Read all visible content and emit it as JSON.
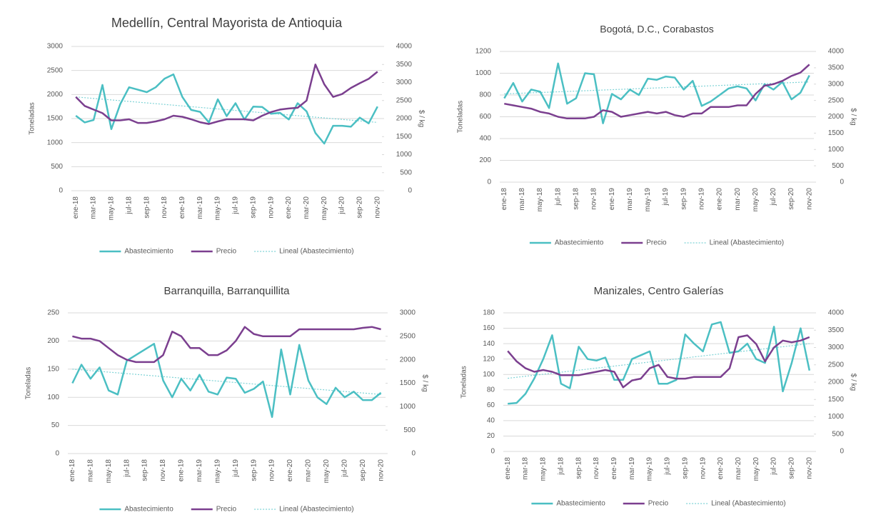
{
  "chart_data": [
    {
      "type": "line",
      "title": "Medellín, Central Mayorista de Antioquia",
      "y_label": "Toneladas",
      "y2_label": "$ / kg",
      "categories": [
        "ene-18",
        null,
        "mar-18",
        null,
        "may-18",
        null,
        "jul-18",
        null,
        "sep-18",
        null,
        "nov-18",
        null,
        "ene-19",
        null,
        "mar-19",
        null,
        "may-19",
        null,
        "jul-19",
        null,
        "sep-19",
        null,
        "nov-19",
        null,
        "ene-20",
        null,
        "mar-20",
        null,
        "may-20",
        null,
        "jul-20",
        null,
        "sep-20",
        null,
        "nov-20"
      ],
      "series": [
        {
          "name": "Abastecimiento",
          "color": "#4bbfc3",
          "values": [
            1560,
            1420,
            1470,
            2200,
            1280,
            1800,
            2150,
            2100,
            2050,
            2150,
            2330,
            2420,
            1950,
            1680,
            1640,
            1420,
            1900,
            1550,
            1820,
            1480,
            1750,
            1740,
            1600,
            1620,
            1480,
            1820,
            1650,
            1200,
            980,
            1350,
            1350,
            1330,
            1520,
            1400,
            1750
          ]
        },
        {
          "name": "Precio",
          "color": "#7b3f8f",
          "axis": "y2",
          "values": [
            2600,
            2350,
            2250,
            2150,
            1950,
            1950,
            1980,
            1880,
            1880,
            1920,
            1980,
            2080,
            2050,
            1980,
            1900,
            1850,
            1920,
            1980,
            1980,
            1980,
            1950,
            2080,
            2180,
            2250,
            2280,
            2300,
            2500,
            3500,
            2950,
            2600,
            2680,
            2850,
            2980,
            3100,
            3300
          ]
        }
      ],
      "trend": {
        "name": "Lineal (Abastecimiento)",
        "color": "#7fd3d6",
        "values": [
          1950,
          1420
        ]
      },
      "ylim": [
        0,
        3000
      ],
      "yticks": [
        0,
        500,
        1000,
        1500,
        2000,
        2500,
        3000
      ],
      "y2lim": [
        0,
        4000
      ],
      "y2ticks": [
        0,
        500,
        1000,
        1500,
        2000,
        2500,
        3000,
        3500,
        4000
      ],
      "grid": true,
      "legend": "bottom"
    },
    {
      "type": "line",
      "title": "Bogotá, D.C., Corabastos",
      "y_label": "Toneladas",
      "y2_label": "$ / kg",
      "categories": [
        "ene-18",
        null,
        "mar-18",
        null,
        "may-18",
        null,
        "jul-18",
        null,
        "sep-18",
        null,
        "nov-18",
        null,
        "ene-19",
        null,
        "mar-19",
        null,
        "may-19",
        null,
        "jul-19",
        null,
        "sep-19",
        null,
        "nov-19",
        null,
        "ene-20",
        null,
        "mar-20",
        null,
        "may-20",
        null,
        "jul-20",
        null,
        "sep-20",
        null,
        "nov-20"
      ],
      "series": [
        {
          "name": "Abastecimiento",
          "color": "#4bbfc3",
          "values": [
            770,
            910,
            740,
            850,
            830,
            680,
            1090,
            720,
            770,
            1000,
            990,
            540,
            810,
            760,
            850,
            800,
            950,
            940,
            970,
            960,
            850,
            930,
            700,
            740,
            800,
            860,
            880,
            860,
            750,
            900,
            850,
            920,
            760,
            820,
            980
          ]
        },
        {
          "name": "Precio",
          "color": "#7b3f8f",
          "axis": "y2",
          "values": [
            2400,
            2350,
            2300,
            2250,
            2150,
            2100,
            2000,
            1950,
            1950,
            1950,
            2000,
            2200,
            2150,
            2000,
            2050,
            2100,
            2150,
            2100,
            2150,
            2050,
            2000,
            2100,
            2100,
            2300,
            2300,
            2300,
            2350,
            2350,
            2700,
            2950,
            3000,
            3100,
            3250,
            3350,
            3600
          ]
        }
      ],
      "trend": {
        "name": "Lineal (Abastecimiento)",
        "color": "#7fd3d6",
        "values": [
          810,
          920
        ]
      },
      "ylim": [
        0,
        1200
      ],
      "yticks": [
        0,
        200,
        400,
        600,
        800,
        1000,
        1200
      ],
      "y2lim": [
        0,
        4000
      ],
      "y2ticks": [
        0,
        500,
        1000,
        1500,
        2000,
        2500,
        3000,
        3500,
        4000
      ],
      "grid": true,
      "legend": "bottom"
    },
    {
      "type": "line",
      "title": "Barranquilla, Barranquillita",
      "y_label": "Toneladas",
      "y2_label": "$ / kg",
      "categories": [
        "ene-18",
        null,
        "mar-18",
        null,
        "may-18",
        null,
        "jul-18",
        null,
        "sep-18",
        null,
        "nov-18",
        null,
        "ene-19",
        null,
        "mar-19",
        null,
        "may-19",
        null,
        "jul-19",
        null,
        "sep-19",
        null,
        "nov-19",
        null,
        "ene-20",
        null,
        "mar-20",
        null,
        "may-20",
        null,
        "jul-20",
        null,
        "sep-20",
        null,
        "nov-20"
      ],
      "series": [
        {
          "name": "Abastecimiento",
          "color": "#4bbfc3",
          "values": [
            125,
            158,
            133,
            153,
            112,
            105,
            165,
            175,
            185,
            195,
            130,
            100,
            133,
            112,
            140,
            110,
            105,
            135,
            133,
            108,
            115,
            128,
            65,
            185,
            105,
            193,
            130,
            100,
            88,
            117,
            100,
            110,
            95,
            95,
            108
          ]
        },
        {
          "name": "Precio",
          "color": "#7b3f8f",
          "axis": "y2",
          "values": [
            2500,
            2450,
            2450,
            2400,
            2250,
            2100,
            2000,
            1950,
            1950,
            1950,
            2100,
            2600,
            2500,
            2250,
            2250,
            2100,
            2100,
            2200,
            2400,
            2700,
            2550,
            2500,
            2500,
            2500,
            2500,
            2650,
            2650,
            2650,
            2650,
            2650,
            2650,
            2650,
            2680,
            2700,
            2650
          ]
        }
      ],
      "trend": {
        "name": "Lineal (Abastecimiento)",
        "color": "#7fd3d6",
        "values": [
          150,
          105
        ]
      },
      "ylim": [
        0,
        250
      ],
      "yticks": [
        0,
        50,
        100,
        150,
        200,
        250
      ],
      "y2lim": [
        0,
        3000
      ],
      "y2ticks": [
        0,
        500,
        1000,
        1500,
        2000,
        2500,
        3000
      ],
      "grid": true,
      "legend": "bottom"
    },
    {
      "type": "line",
      "title": "Manizales, Centro Galerías",
      "y_label": "Toneladas",
      "y2_label": "$ / kg",
      "categories": [
        "ene-18",
        null,
        "mar-18",
        null,
        "may-18",
        null,
        "jul-18",
        null,
        "sep-18",
        null,
        "nov-18",
        null,
        "ene-19",
        null,
        "mar-19",
        null,
        "may-19",
        null,
        "jul-19",
        null,
        "sep-19",
        null,
        "nov-19",
        null,
        "ene-20",
        null,
        "mar-20",
        null,
        "may-20",
        null,
        "jul-20",
        null,
        "sep-20",
        null,
        "nov-20"
      ],
      "series": [
        {
          "name": "Abastecimiento",
          "color": "#4bbfc3",
          "values": [
            62,
            63,
            75,
            95,
            120,
            151,
            88,
            82,
            136,
            120,
            118,
            122,
            93,
            93,
            120,
            125,
            130,
            88,
            88,
            93,
            152,
            140,
            130,
            165,
            168,
            128,
            130,
            140,
            120,
            115,
            162,
            78,
            115,
            160,
            105
          ]
        },
        {
          "name": "Precio",
          "color": "#7b3f8f",
          "axis": "y2",
          "values": [
            2900,
            2600,
            2400,
            2300,
            2350,
            2300,
            2200,
            2200,
            2200,
            2250,
            2300,
            2350,
            2300,
            1850,
            2050,
            2100,
            2400,
            2500,
            2150,
            2100,
            2100,
            2150,
            2150,
            2150,
            2150,
            2400,
            3300,
            3350,
            3100,
            2600,
            3000,
            3200,
            3150,
            3200,
            3300
          ]
        }
      ],
      "trend": {
        "name": "Lineal (Abastecimiento)",
        "color": "#7fd3d6",
        "values": [
          95,
          140
        ]
      },
      "ylim": [
        0,
        180
      ],
      "yticks": [
        0,
        20,
        40,
        60,
        80,
        100,
        120,
        140,
        160,
        180
      ],
      "y2lim": [
        0,
        4000
      ],
      "y2ticks": [
        0,
        500,
        1000,
        1500,
        2000,
        2500,
        3000,
        3500,
        4000
      ],
      "grid": true,
      "legend": "bottom"
    }
  ]
}
